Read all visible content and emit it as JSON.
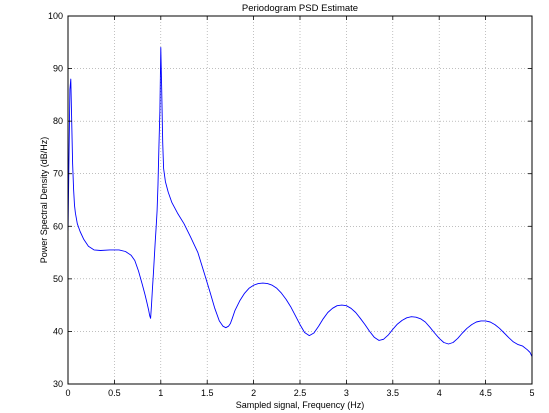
{
  "chart_data": {
    "type": "line",
    "title": "Periodogram PSD Estimate",
    "xlabel": "Sampled signal, Frequency (Hz)",
    "ylabel": "Power Spectral Density (dB/Hz)",
    "xlim": [
      0,
      5
    ],
    "ylim": [
      30,
      100
    ],
    "xticks": [
      0,
      0.5,
      1,
      1.5,
      2,
      2.5,
      3,
      3.5,
      4,
      4.5,
      5
    ],
    "xtick_labels": [
      "0",
      "0.5",
      "1",
      "1.5",
      "2",
      "2.5",
      "3",
      "3.5",
      "4",
      "4.5",
      "5"
    ],
    "yticks": [
      30,
      40,
      50,
      60,
      70,
      80,
      90,
      100
    ],
    "ytick_labels": [
      "30",
      "40",
      "50",
      "60",
      "70",
      "80",
      "90",
      "100"
    ],
    "grid": true,
    "legend": "none",
    "colors": {
      "line": "#0000ff",
      "axes": "#000000",
      "grid": "#999999",
      "background": "#ffffff"
    },
    "series": [
      {
        "x": [
          0,
          0.01,
          0.02,
          0.03,
          0.04,
          0.05,
          0.06,
          0.07,
          0.08,
          0.1,
          0.13,
          0.17,
          0.22,
          0.28,
          0.35,
          0.45,
          0.55,
          0.62,
          0.68,
          0.72,
          0.76,
          0.8,
          0.83,
          0.85,
          0.87,
          0.88,
          0.89,
          0.9,
          0.91,
          0.92,
          0.93,
          0.94,
          0.95,
          0.96,
          0.97,
          0.98,
          0.99,
          1.0,
          1.01,
          1.02,
          1.03,
          1.05,
          1.08,
          1.12,
          1.18,
          1.25,
          1.32,
          1.4,
          1.47,
          1.53,
          1.58,
          1.63,
          1.67,
          1.7,
          1.73,
          1.75,
          1.77,
          1.8,
          1.85,
          1.9,
          1.95,
          2.0,
          2.05,
          2.1,
          2.15,
          2.2,
          2.25,
          2.3,
          2.35,
          2.4,
          2.45,
          2.5,
          2.55,
          2.6,
          2.65,
          2.7,
          2.75,
          2.8,
          2.85,
          2.9,
          2.95,
          3.0,
          3.05,
          3.1,
          3.15,
          3.2,
          3.25,
          3.3,
          3.35,
          3.4,
          3.45,
          3.5,
          3.55,
          3.6,
          3.65,
          3.7,
          3.75,
          3.8,
          3.85,
          3.9,
          3.95,
          4.0,
          4.05,
          4.1,
          4.15,
          4.2,
          4.25,
          4.3,
          4.35,
          4.4,
          4.45,
          4.5,
          4.55,
          4.6,
          4.65,
          4.7,
          4.75,
          4.8,
          4.85,
          4.9,
          4.95,
          4.98,
          5.0
        ],
        "y": [
          58,
          72,
          86,
          88,
          80,
          72,
          67,
          64,
          62.5,
          60.5,
          59,
          57.5,
          56.2,
          55.5,
          55.4,
          55.5,
          55.5,
          55.2,
          54.5,
          53.5,
          51.5,
          49,
          47,
          45.5,
          44,
          43,
          42.5,
          45,
          48,
          51,
          54,
          57,
          60,
          63,
          68,
          75,
          82,
          94,
          86,
          76,
          71,
          68.5,
          66.5,
          64.5,
          62.5,
          60.5,
          58,
          55,
          51,
          47.5,
          44.5,
          42,
          41,
          40.7,
          41,
          41.5,
          42.5,
          44,
          45.8,
          47.2,
          48.2,
          48.8,
          49.1,
          49.2,
          49.1,
          48.8,
          48.2,
          47.3,
          46.1,
          44.7,
          43,
          41.3,
          39.8,
          39.2,
          39.7,
          41,
          42.4,
          43.6,
          44.4,
          44.9,
          45,
          44.9,
          44.4,
          43.6,
          42.5,
          41.3,
          40,
          38.9,
          38.3,
          38.5,
          39.3,
          40.4,
          41.4,
          42.1,
          42.6,
          42.8,
          42.7,
          42.4,
          41.8,
          40.8,
          39.7,
          38.7,
          37.9,
          37.6,
          37.9,
          38.7,
          39.7,
          40.6,
          41.3,
          41.8,
          42,
          42,
          41.8,
          41.3,
          40.6,
          39.7,
          38.8,
          38,
          37.5,
          37.2,
          36.5,
          36,
          35.2
        ]
      }
    ]
  }
}
